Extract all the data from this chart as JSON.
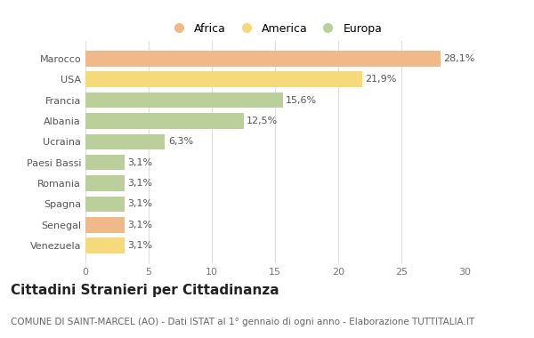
{
  "categories": [
    "Marocco",
    "USA",
    "Francia",
    "Albania",
    "Ucraina",
    "Paesi Bassi",
    "Romania",
    "Spagna",
    "Senegal",
    "Venezuela"
  ],
  "values": [
    28.1,
    21.9,
    15.6,
    12.5,
    6.3,
    3.1,
    3.1,
    3.1,
    3.1,
    3.1
  ],
  "labels": [
    "28,1%",
    "21,9%",
    "15,6%",
    "12,5%",
    "6,3%",
    "3,1%",
    "3,1%",
    "3,1%",
    "3,1%",
    "3,1%"
  ],
  "colors": [
    "#F0B989",
    "#F5D97A",
    "#BACF9A",
    "#BACF9A",
    "#BACF9A",
    "#BACF9A",
    "#BACF9A",
    "#BACF9A",
    "#F0B989",
    "#F5D97A"
  ],
  "legend_labels": [
    "Africa",
    "America",
    "Europa"
  ],
  "legend_colors": [
    "#F0B989",
    "#F5D97A",
    "#BACF9A"
  ],
  "title": "Cittadini Stranieri per Cittadinanza",
  "subtitle": "COMUNE DI SAINT-MARCEL (AO) - Dati ISTAT al 1° gennaio di ogni anno - Elaborazione TUTTITALIA.IT",
  "xlim": [
    0,
    30
  ],
  "xticks": [
    0,
    5,
    10,
    15,
    20,
    25,
    30
  ],
  "background_color": "#FFFFFF",
  "grid_color": "#DDDDDD",
  "bar_height": 0.75,
  "title_fontsize": 11,
  "subtitle_fontsize": 7.5,
  "label_fontsize": 8,
  "tick_fontsize": 8,
  "legend_fontsize": 9
}
